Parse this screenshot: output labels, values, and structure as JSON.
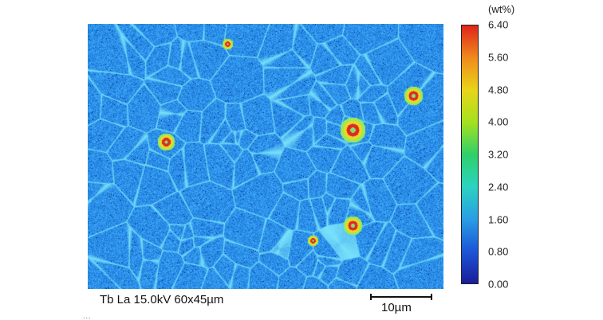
{
  "colorbar": {
    "unit": "(wt%)",
    "ticks": [
      "6.40",
      "5.60",
      "4.80",
      "4.00",
      "3.20",
      "2.40",
      "1.60",
      "0.80",
      "0.00"
    ],
    "colors": [
      "#e0241b",
      "#f08a1c",
      "#e8d51a",
      "#a6e11e",
      "#2fd06a",
      "#2bd3c0",
      "#2a9ee4",
      "#1c55d8",
      "#1a1d9a"
    ]
  },
  "caption": "Tb La 15.0kV 60x45µm",
  "scale_label": "10µm",
  "footer_mark": "..."
}
